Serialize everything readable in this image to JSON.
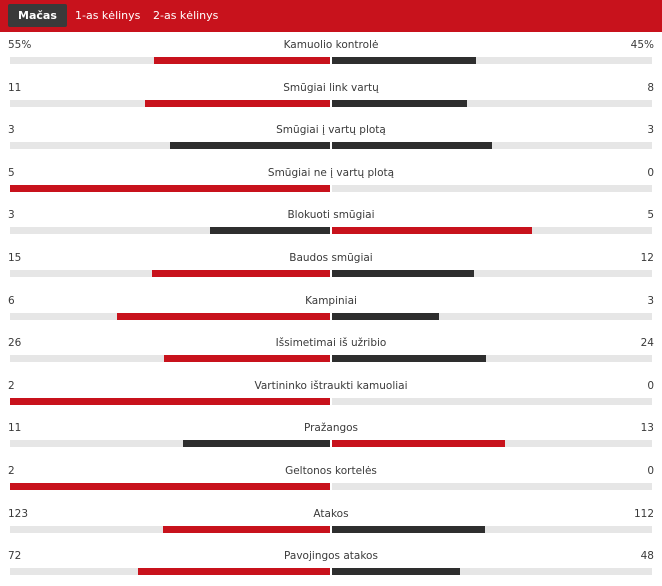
{
  "tabs": [
    {
      "label": "Mačas",
      "active": true
    },
    {
      "label": "1-as kėlinys",
      "active": false
    },
    {
      "label": "2-as kėlinys",
      "active": false
    }
  ],
  "colors": {
    "red": "#c8121c",
    "dark": "#2e2e2e",
    "track": "#e6e6e6"
  },
  "stats": [
    {
      "label": "Kamuolio kontrolė",
      "home": "55%",
      "away": "45%",
      "home_share": 0.55,
      "away_share": 0.45,
      "home_color": "red",
      "away_color": "dark"
    },
    {
      "label": "Smūgiai link vartų",
      "home": "11",
      "away": "8",
      "home_share": 0.579,
      "away_share": 0.421,
      "home_color": "red",
      "away_color": "dark"
    },
    {
      "label": "Smūgiai į vartų plotą",
      "home": "3",
      "away": "3",
      "home_share": 0.5,
      "away_share": 0.5,
      "home_color": "dark",
      "away_color": "dark"
    },
    {
      "label": "Smūgiai ne į vartų plotą",
      "home": "5",
      "away": "0",
      "home_share": 1.0,
      "away_share": 0.0,
      "home_color": "red",
      "away_color": "dark"
    },
    {
      "label": "Blokuoti smūgiai",
      "home": "3",
      "away": "5",
      "home_share": 0.375,
      "away_share": 0.625,
      "home_color": "dark",
      "away_color": "red"
    },
    {
      "label": "Baudos smūgiai",
      "home": "15",
      "away": "12",
      "home_share": 0.556,
      "away_share": 0.444,
      "home_color": "red",
      "away_color": "dark"
    },
    {
      "label": "Kampiniai",
      "home": "6",
      "away": "3",
      "home_share": 0.667,
      "away_share": 0.333,
      "home_color": "red",
      "away_color": "dark"
    },
    {
      "label": "Išsimetimai iš užribio",
      "home": "26",
      "away": "24",
      "home_share": 0.52,
      "away_share": 0.48,
      "home_color": "red",
      "away_color": "dark"
    },
    {
      "label": "Vartininko ištraukti kamuoliai",
      "home": "2",
      "away": "0",
      "home_share": 1.0,
      "away_share": 0.0,
      "home_color": "red",
      "away_color": "dark"
    },
    {
      "label": "Pražangos",
      "home": "11",
      "away": "13",
      "home_share": 0.458,
      "away_share": 0.542,
      "home_color": "dark",
      "away_color": "red"
    },
    {
      "label": "Geltonos kortelės",
      "home": "2",
      "away": "0",
      "home_share": 1.0,
      "away_share": 0.0,
      "home_color": "red",
      "away_color": "dark"
    },
    {
      "label": "Atakos",
      "home": "123",
      "away": "112",
      "home_share": 0.523,
      "away_share": 0.477,
      "home_color": "red",
      "away_color": "dark"
    },
    {
      "label": "Pavojingos atakos",
      "home": "72",
      "away": "48",
      "home_share": 0.6,
      "away_share": 0.4,
      "home_color": "red",
      "away_color": "dark"
    }
  ]
}
